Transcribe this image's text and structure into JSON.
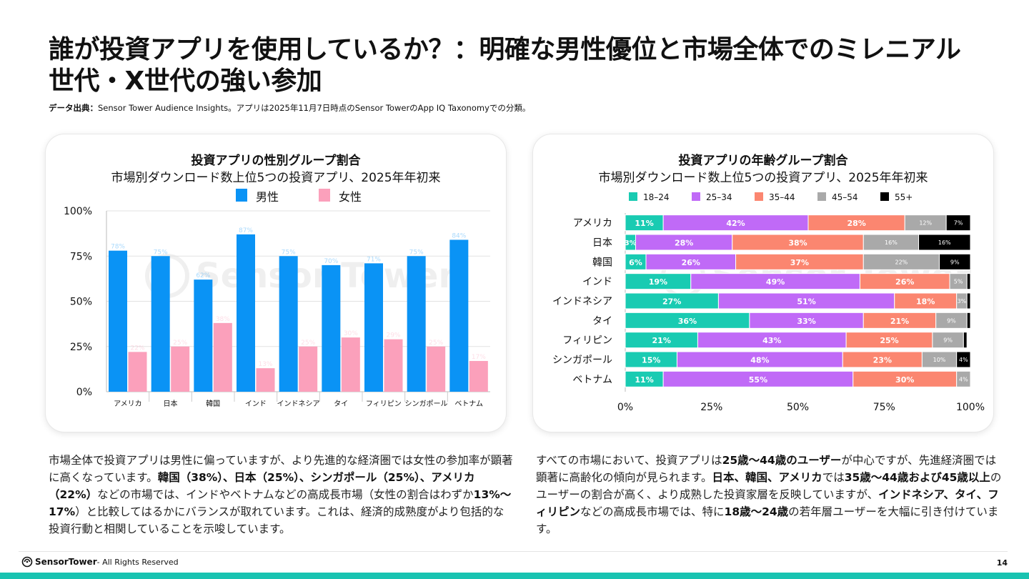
{
  "title": "誰が投資アプリを使用しているか？：明確な男性優位と市場全体でのミレニアル世代・X世代の強い参加",
  "source": {
    "label": "データ出典：",
    "text": "Sensor Tower Audience Insights。アプリは2025年11月7日時点のSensor TowerのApp IQ Taxonomyでの分類。"
  },
  "watermark": "Sensor Tower",
  "chart_data": [
    {
      "type": "bar",
      "title": "投資アプリの性別グループ割合",
      "subtitle": "市場別ダウンロード数上位5つの投資アプリ、2025年年初来",
      "categories": [
        "アメリカ",
        "日本",
        "韓国",
        "インド",
        "インドネシア",
        "タイ",
        "フィリピン",
        "シンガポール",
        "ベトナム"
      ],
      "series": [
        {
          "name": "男性",
          "color": "#0a93f5",
          "values": [
            78,
            75,
            62,
            87,
            75,
            70,
            71,
            75,
            84
          ]
        },
        {
          "name": "女性",
          "color": "#fba0bb",
          "values": [
            22,
            25,
            38,
            13,
            25,
            30,
            29,
            25,
            17
          ]
        }
      ],
      "yticks": [
        "0%",
        "25%",
        "50%",
        "75%",
        "100%"
      ],
      "ylim": [
        0,
        100
      ],
      "legend": "top-center"
    },
    {
      "type": "bar",
      "orientation": "horizontal-stacked",
      "title": "投資アプリの年齢グループ割合",
      "subtitle": "市場別ダウンロード数上位5つの投資アプリ、2025年年初来",
      "categories": [
        "アメリカ",
        "日本",
        "韓国",
        "インド",
        "インドネシア",
        "タイ",
        "フィリピン",
        "シンガポール",
        "ベトナム"
      ],
      "series": [
        {
          "name": "18–24",
          "color": "#19cbb2",
          "values": [
            11,
            3,
            6,
            19,
            27,
            36,
            21,
            15,
            11
          ]
        },
        {
          "name": "25–34",
          "color": "#c06af7",
          "values": [
            42,
            28,
            26,
            49,
            51,
            33,
            43,
            48,
            55
          ]
        },
        {
          "name": "35–44",
          "color": "#fb8670",
          "values": [
            28,
            38,
            37,
            26,
            18,
            21,
            25,
            23,
            30
          ]
        },
        {
          "name": "45–54",
          "color": "#a9a9a9",
          "values": [
            12,
            16,
            22,
            5,
            3,
            9,
            9,
            10,
            4
          ]
        },
        {
          "name": "55+",
          "color": "#000000",
          "values": [
            7,
            16,
            9,
            1,
            1,
            1,
            1,
            4,
            0
          ]
        }
      ],
      "xticks": [
        "0%",
        "25%",
        "50%",
        "75%",
        "100%"
      ],
      "xlim": [
        0,
        100
      ],
      "legend": "top-center"
    }
  ],
  "paragraphs": {
    "left": [
      {
        "t": "市場全体で投資アプリは男性に偏っていますが、より先進的な経済圏では女性の参加率が顕著に高くなっています。",
        "b": false
      },
      {
        "t": "韓国（38%）、日本（25%）、シンガポール（25%）、アメリカ（22%）",
        "b": true
      },
      {
        "t": "などの市場では、インドやベトナムなどの高成長市場（女性の割合はわずか",
        "b": false
      },
      {
        "t": "13%〜17%",
        "b": true
      },
      {
        "t": "）と比較してはるかにバランスが取れています。これは、経済的成熟度がより包括的な投資行動と相関していることを示唆しています。",
        "b": false
      }
    ],
    "right": [
      {
        "t": "すべての市場において、投資アプリは",
        "b": false
      },
      {
        "t": "25歳〜44歳のユーザー",
        "b": true
      },
      {
        "t": "が中心ですが、先進経済圏では顕著に高齢化の傾向が見られます。",
        "b": false
      },
      {
        "t": "日本、韓国、アメリカ",
        "b": true
      },
      {
        "t": "では",
        "b": false
      },
      {
        "t": "35歳〜44歳および45歳以上",
        "b": true
      },
      {
        "t": "のユーザーの割合が高く、より成熟した投資家層を反映していますが、",
        "b": false
      },
      {
        "t": "インドネシア、タイ、フィリピン",
        "b": true
      },
      {
        "t": "などの高成長市場では、特に",
        "b": false
      },
      {
        "t": "18歳〜24歳",
        "b": true
      },
      {
        "t": "の若年層ユーザーを大幅に引き付けています。",
        "b": false
      }
    ]
  },
  "footer": {
    "brand": "SensorTower",
    "rights": " - All Rights Reserved",
    "page": "14"
  },
  "colors": {
    "accent": "#19c3b1"
  }
}
